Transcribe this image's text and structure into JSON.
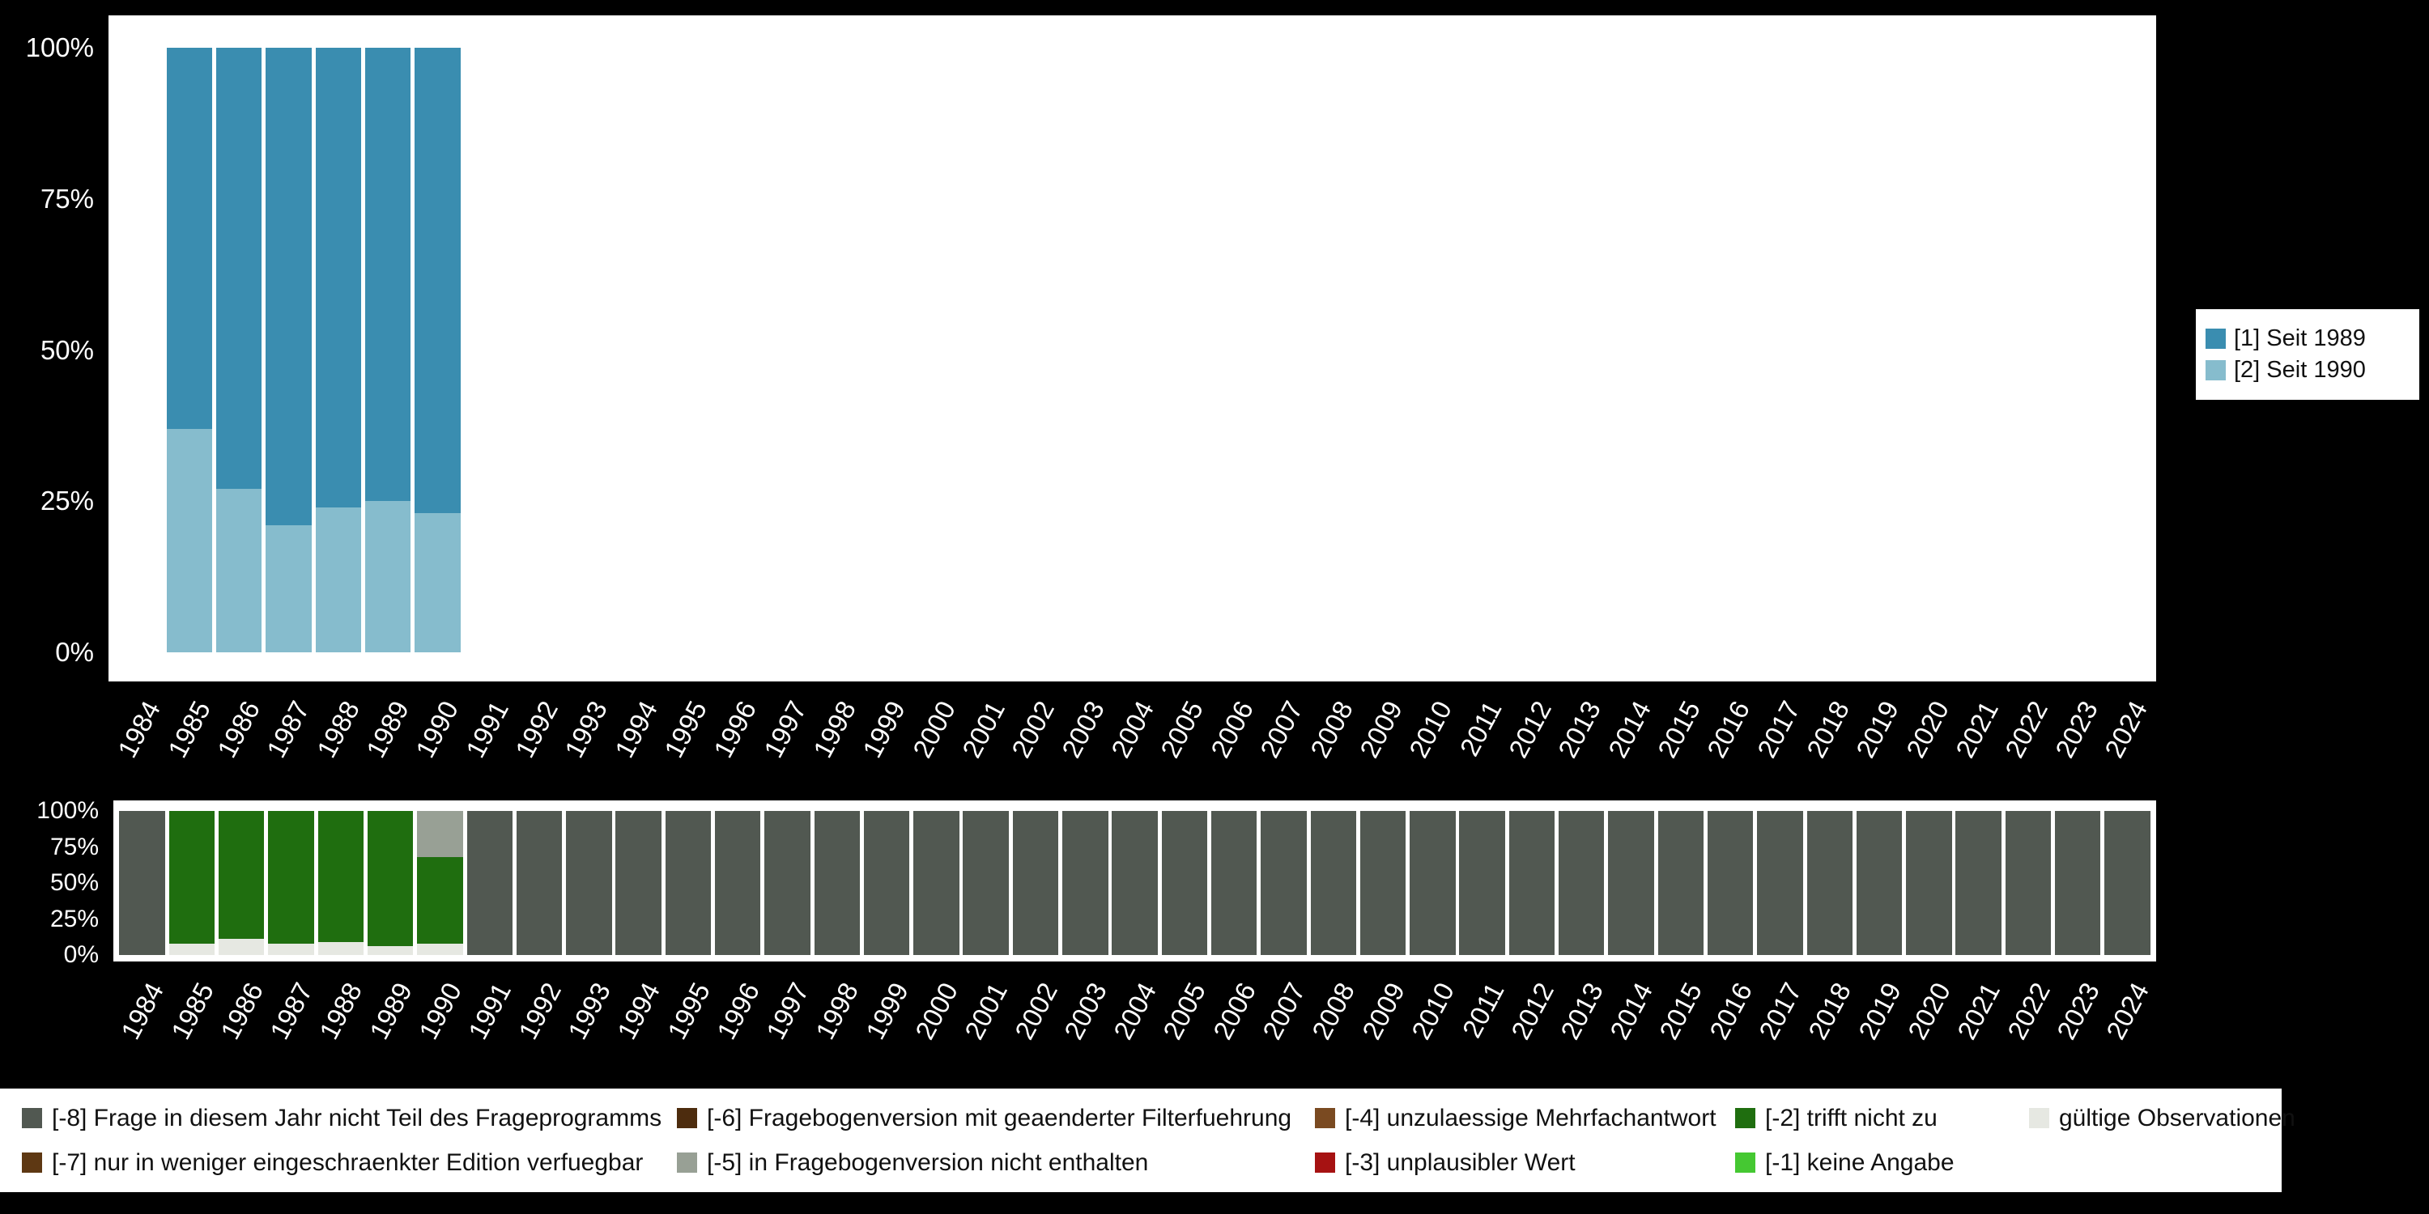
{
  "colors": {
    "page_background": "#000000",
    "plot_background": "#ffffff",
    "axis_text": "#ffffff",
    "legend_text": "#111111",
    "seit_1989": "#3a8db0",
    "seit_1990": "#86bccd",
    "minus8": "#515851",
    "minus7": "#5e3813",
    "minus6": "#4d2c0e",
    "minus5": "#98a095",
    "minus4": "#7a4a21",
    "minus3": "#a61212",
    "minus2": "#1f6e0f",
    "minus1": "#45c832",
    "valid": "#e6e8e2"
  },
  "chart_data": [
    {
      "type": "bar",
      "stacked": true,
      "title": "",
      "xlabel": "",
      "ylabel": "",
      "ylim": [
        0,
        100
      ],
      "grid": false,
      "legend_position": "right",
      "yticks": [
        "100%",
        "75%",
        "50%",
        "25%",
        "0%"
      ],
      "categories": [
        "1984",
        "1985",
        "1986",
        "1987",
        "1988",
        "1989",
        "1990",
        "1991",
        "1992",
        "1993",
        "1994",
        "1995",
        "1996",
        "1997",
        "1998",
        "1999",
        "2000",
        "2001",
        "2002",
        "2003",
        "2004",
        "2005",
        "2006",
        "2007",
        "2008",
        "2009",
        "2010",
        "2011",
        "2012",
        "2013",
        "2014",
        "2015",
        "2016",
        "2017",
        "2018",
        "2019",
        "2020",
        "2021",
        "2022",
        "2023",
        "2024"
      ],
      "series": [
        {
          "name": "[1] Seit 1989",
          "color": "#3a8db0",
          "values": [
            0,
            63,
            73,
            79,
            76,
            75,
            77,
            0,
            0,
            0,
            0,
            0,
            0,
            0,
            0,
            0,
            0,
            0,
            0,
            0,
            0,
            0,
            0,
            0,
            0,
            0,
            0,
            0,
            0,
            0,
            0,
            0,
            0,
            0,
            0,
            0,
            0,
            0,
            0,
            0,
            0
          ]
        },
        {
          "name": "[2] Seit 1990",
          "color": "#86bccd",
          "values": [
            0,
            37,
            27,
            21,
            24,
            25,
            23,
            0,
            0,
            0,
            0,
            0,
            0,
            0,
            0,
            0,
            0,
            0,
            0,
            0,
            0,
            0,
            0,
            0,
            0,
            0,
            0,
            0,
            0,
            0,
            0,
            0,
            0,
            0,
            0,
            0,
            0,
            0,
            0,
            0,
            0
          ]
        }
      ]
    },
    {
      "type": "bar",
      "stacked": true,
      "title": "",
      "xlabel": "",
      "ylabel": "",
      "ylim": [
        0,
        100
      ],
      "grid": false,
      "legend_position": "bottom",
      "yticks": [
        "100%",
        "75%",
        "50%",
        "25%",
        "0%"
      ],
      "categories": [
        "1984",
        "1985",
        "1986",
        "1987",
        "1988",
        "1989",
        "1990",
        "1991",
        "1992",
        "1993",
        "1994",
        "1995",
        "1996",
        "1997",
        "1998",
        "1999",
        "2000",
        "2001",
        "2002",
        "2003",
        "2004",
        "2005",
        "2006",
        "2007",
        "2008",
        "2009",
        "2010",
        "2011",
        "2012",
        "2013",
        "2014",
        "2015",
        "2016",
        "2017",
        "2018",
        "2019",
        "2020",
        "2021",
        "2022",
        "2023",
        "2024"
      ],
      "series": [
        {
          "name": "[-8] Frage in diesem Jahr nicht Teil des Frageprogramms",
          "color": "#515851",
          "values": [
            100,
            0,
            0,
            0,
            0,
            0,
            0,
            100,
            100,
            100,
            100,
            100,
            100,
            100,
            100,
            100,
            100,
            100,
            100,
            100,
            100,
            100,
            100,
            100,
            100,
            100,
            100,
            100,
            100,
            100,
            100,
            100,
            100,
            100,
            100,
            100,
            100,
            100,
            100,
            100,
            100
          ]
        },
        {
          "name": "[-5] in Fragebogenversion nicht enthalten",
          "color": "#98a095",
          "values": [
            0,
            0,
            0,
            0,
            0,
            0,
            32,
            0,
            0,
            0,
            0,
            0,
            0,
            0,
            0,
            0,
            0,
            0,
            0,
            0,
            0,
            0,
            0,
            0,
            0,
            0,
            0,
            0,
            0,
            0,
            0,
            0,
            0,
            0,
            0,
            0,
            0,
            0,
            0,
            0,
            0
          ]
        },
        {
          "name": "[-2] trifft nicht zu",
          "color": "#1f6e0f",
          "values": [
            0,
            92,
            89,
            92,
            91,
            94,
            60,
            0,
            0,
            0,
            0,
            0,
            0,
            0,
            0,
            0,
            0,
            0,
            0,
            0,
            0,
            0,
            0,
            0,
            0,
            0,
            0,
            0,
            0,
            0,
            0,
            0,
            0,
            0,
            0,
            0,
            0,
            0,
            0,
            0,
            0
          ]
        },
        {
          "name": "gültige Observationen",
          "color": "#e6e8e2",
          "values": [
            0,
            8,
            11,
            8,
            9,
            6,
            8,
            0,
            0,
            0,
            0,
            0,
            0,
            0,
            0,
            0,
            0,
            0,
            0,
            0,
            0,
            0,
            0,
            0,
            0,
            0,
            0,
            0,
            0,
            0,
            0,
            0,
            0,
            0,
            0,
            0,
            0,
            0,
            0,
            0,
            0
          ]
        }
      ]
    }
  ],
  "legend_right": {
    "items": [
      {
        "label": "[1] Seit 1989",
        "color": "#3a8db0"
      },
      {
        "label": "[2] Seit 1990",
        "color": "#86bccd"
      }
    ]
  },
  "bottom_legend": {
    "columns": [
      {
        "items": [
          {
            "label": "[-8] Frage in diesem Jahr nicht Teil des Frageprogramms",
            "color": "#515851"
          },
          {
            "label": "[-7] nur in weniger eingeschraenkter Edition verfuegbar",
            "color": "#5e3813"
          }
        ]
      },
      {
        "items": [
          {
            "label": "[-6] Fragebogenversion mit geaenderter Filterfuehrung",
            "color": "#4d2c0e"
          },
          {
            "label": "[-5] in Fragebogenversion nicht enthalten",
            "color": "#98a095"
          }
        ]
      },
      {
        "items": [
          {
            "label": "[-4] unzulaessige Mehrfachantwort",
            "color": "#7a4a21"
          },
          {
            "label": "[-3] unplausibler Wert",
            "color": "#a61212"
          }
        ]
      },
      {
        "items": [
          {
            "label": "[-2] trifft nicht zu",
            "color": "#1f6e0f"
          },
          {
            "label": "[-1] keine Angabe",
            "color": "#45c832"
          }
        ]
      },
      {
        "items": [
          {
            "label": "gültige Observationen",
            "color": "#e6e8e2"
          }
        ]
      }
    ]
  }
}
